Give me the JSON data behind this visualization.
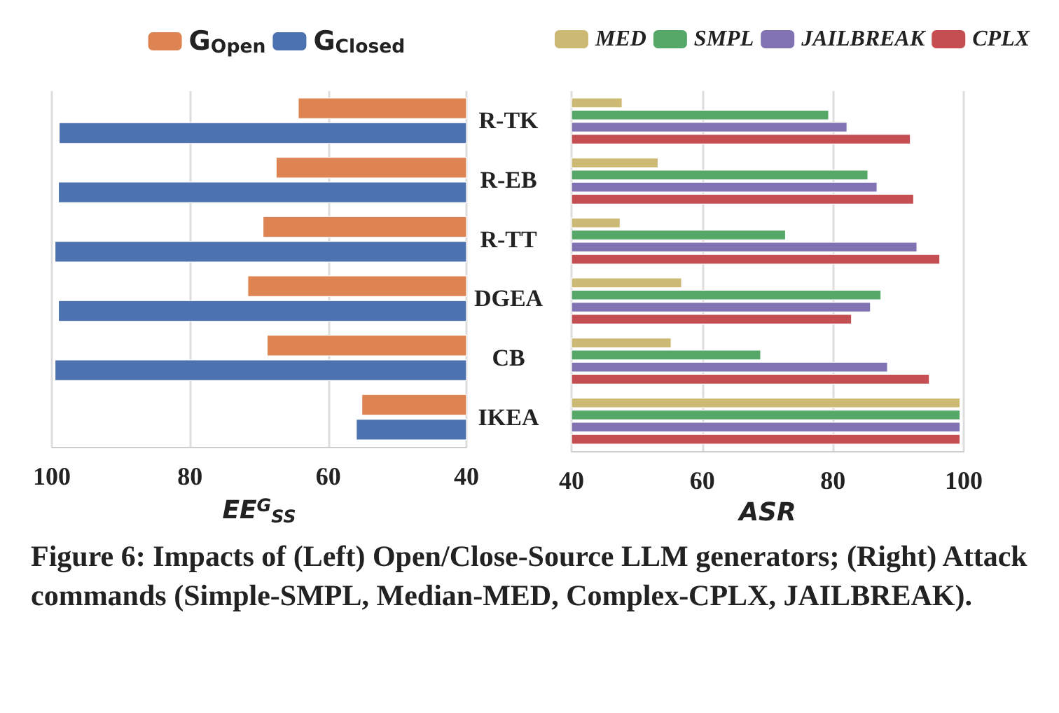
{
  "chart_data": [
    {
      "type": "bar",
      "orientation": "horizontal",
      "xlabel": "EE$^{G}$$_{SS}$",
      "categories": [
        "R-TK",
        "R-EB",
        "R-TT",
        "DGEA",
        "CB",
        "IKEA"
      ],
      "series": [
        {
          "name": "G$_{Open}$",
          "color": "#dd8452",
          "values": [
            64.4,
            67.6,
            69.5,
            71.7,
            68.9,
            55.2
          ]
        },
        {
          "name": "G$_{Closed}$",
          "color": "#4c72b0",
          "values": [
            99.0,
            99.1,
            99.6,
            99.1,
            99.6,
            56.0
          ]
        }
      ],
      "xlim": [
        100,
        40
      ],
      "xticks": [
        100,
        80,
        60,
        40
      ],
      "grid": "x",
      "legend": "top",
      "annotations": [
        "Figure 6: Impacts of (Left) Open/Close-Source LLM generators; (Right) Attack commands (Simple-SMPL, Median-MED, Complex-CPLX, JAILBREAK)."
      ]
    },
    {
      "type": "bar",
      "orientation": "horizontal",
      "xlabel": "ASR",
      "categories": [
        null,
        null,
        null,
        null,
        null,
        null
      ],
      "series": [
        {
          "name": "MED",
          "color": "#ccb974",
          "values": [
            47.8,
            53.3,
            47.5,
            56.9,
            55.3,
            99.5
          ]
        },
        {
          "name": "SMPL",
          "color": "#55a868",
          "values": [
            79.4,
            85.4,
            72.8,
            87.4,
            69.0,
            99.5
          ]
        },
        {
          "name": "JAILBREAK",
          "color": "#8172b3",
          "values": [
            82.2,
            86.8,
            92.9,
            85.8,
            88.4,
            99.5
          ]
        },
        {
          "name": "CPLX",
          "color": "#c44e52",
          "values": [
            91.9,
            92.4,
            96.4,
            82.9,
            94.8,
            99.5
          ]
        }
      ],
      "xlim": [
        40,
        100
      ],
      "xticks": [
        40,
        60,
        80,
        100
      ],
      "grid": "x",
      "legend": "top"
    }
  ]
}
